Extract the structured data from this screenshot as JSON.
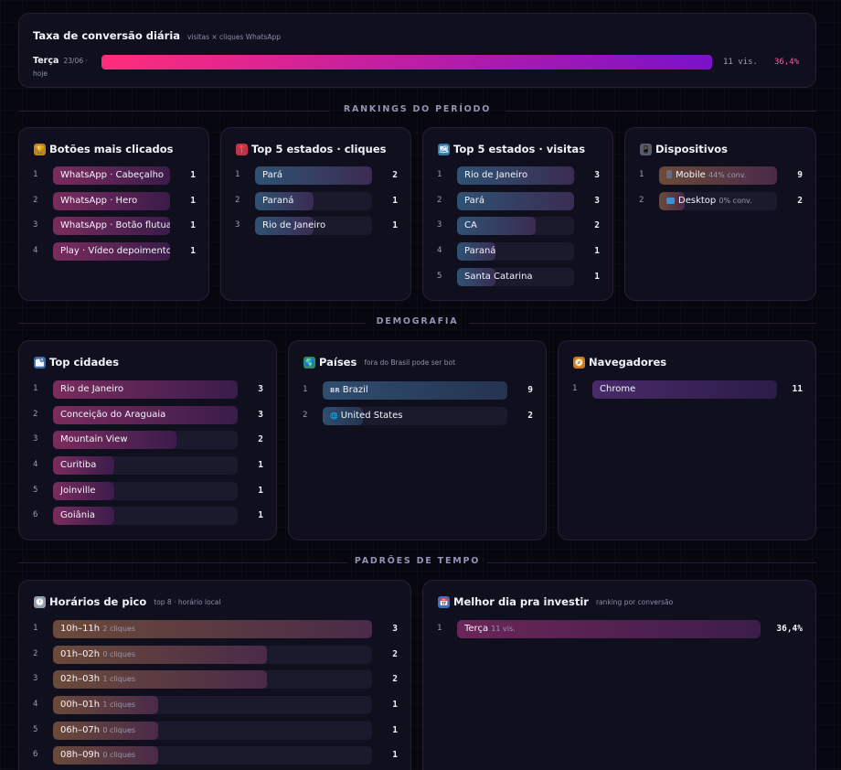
{
  "conversion": {
    "title": "Taxa de conversão diária",
    "subtitle": "visitas × cliques WhatsApp",
    "day": "Terça",
    "date": "23/06 · hoje",
    "visits": "11 vis.",
    "rate": "36,4%"
  },
  "sections": {
    "rankings": "RANKINGS DO PERÍODO",
    "demografia": "DEMOGRAFIA",
    "tempo": "PADRÕES DE TEMPO"
  },
  "top_buttons": {
    "title": "Botões mais clicados",
    "icon": "trophy-icon",
    "rows": [
      {
        "rank": "1",
        "label": "WhatsApp · Cabeçalho",
        "count": "1",
        "fill": 1.0
      },
      {
        "rank": "2",
        "label": "WhatsApp · Hero",
        "count": "1",
        "fill": 1.0
      },
      {
        "rank": "3",
        "label": "WhatsApp · Botão flutua…",
        "count": "1",
        "fill": 1.0
      },
      {
        "rank": "4",
        "label": "Play · Vídeo depoimento",
        "count": "1",
        "fill": 1.0
      }
    ]
  },
  "states_clicks": {
    "title": "Top 5 estados · cliques",
    "icon": "pin-icon",
    "rows": [
      {
        "rank": "1",
        "label": "Pará",
        "count": "2",
        "fill": 1.0
      },
      {
        "rank": "2",
        "label": "Paraná",
        "count": "1",
        "fill": 0.5
      },
      {
        "rank": "3",
        "label": "Rio de Janeiro",
        "count": "1",
        "fill": 0.5
      }
    ]
  },
  "states_visits": {
    "title": "Top 5 estados · visitas",
    "icon": "map-icon",
    "rows": [
      {
        "rank": "1",
        "label": "Rio de Janeiro",
        "count": "3",
        "fill": 1.0
      },
      {
        "rank": "2",
        "label": "Pará",
        "count": "3",
        "fill": 1.0
      },
      {
        "rank": "3",
        "label": "CA",
        "count": "2",
        "fill": 0.67
      },
      {
        "rank": "4",
        "label": "Paraná",
        "count": "1",
        "fill": 0.33
      },
      {
        "rank": "5",
        "label": "Santa Catarina",
        "count": "1",
        "fill": 0.33
      }
    ]
  },
  "devices": {
    "title": "Dispositivos",
    "icon": "phone-icon",
    "rows": [
      {
        "rank": "1",
        "label": "Mobile",
        "extra": "44% conv.",
        "count": "9",
        "fill": 1.0,
        "icon": "mobile-icon"
      },
      {
        "rank": "2",
        "label": "Desktop",
        "extra": "0% conv.",
        "count": "2",
        "fill": 0.22,
        "icon": "desktop-icon"
      }
    ]
  },
  "cities": {
    "title": "Top cidades",
    "icon": "city-icon",
    "rows": [
      {
        "rank": "1",
        "label": "Rio de Janeiro",
        "count": "3",
        "fill": 1.0
      },
      {
        "rank": "2",
        "label": "Conceição do Araguaia",
        "count": "3",
        "fill": 1.0
      },
      {
        "rank": "3",
        "label": "Mountain View",
        "count": "2",
        "fill": 0.67
      },
      {
        "rank": "4",
        "label": "Curitiba",
        "count": "1",
        "fill": 0.33
      },
      {
        "rank": "5",
        "label": "Joinville",
        "count": "1",
        "fill": 0.33
      },
      {
        "rank": "6",
        "label": "Goiânia",
        "count": "1",
        "fill": 0.33
      }
    ]
  },
  "countries": {
    "title": "Países",
    "subtitle": "fora do Brasil pode ser bot",
    "icon": "globe-icon",
    "rows": [
      {
        "rank": "1",
        "flag": "BR",
        "label": "Brazil",
        "count": "9",
        "fill": 1.0
      },
      {
        "rank": "2",
        "flag": "🌐",
        "label": "United States",
        "count": "2",
        "fill": 0.22
      }
    ]
  },
  "browsers": {
    "title": "Navegadores",
    "icon": "compass-icon",
    "rows": [
      {
        "rank": "1",
        "label": "Chrome",
        "count": "11",
        "fill": 1.0
      }
    ]
  },
  "peak_hours": {
    "title": "Horários de pico",
    "subtitle": "top 8 · horário local",
    "icon": "clock-icon",
    "rows": [
      {
        "rank": "1",
        "label": "10h–11h",
        "extra": "2 cliques",
        "count": "3",
        "fill": 1.0
      },
      {
        "rank": "2",
        "label": "01h–02h",
        "extra": "0 cliques",
        "count": "2",
        "fill": 0.67
      },
      {
        "rank": "3",
        "label": "02h–03h",
        "extra": "1 cliques",
        "count": "2",
        "fill": 0.67
      },
      {
        "rank": "4",
        "label": "00h–01h",
        "extra": "1 cliques",
        "count": "1",
        "fill": 0.33
      },
      {
        "rank": "5",
        "label": "06h–07h",
        "extra": "0 cliques",
        "count": "1",
        "fill": 0.33
      },
      {
        "rank": "6",
        "label": "08h–09h",
        "extra": "0 cliques",
        "count": "1",
        "fill": 0.33
      }
    ]
  },
  "best_day": {
    "title": "Melhor dia pra investir",
    "subtitle": "ranking por conversão",
    "icon": "calendar-icon",
    "rows": [
      {
        "rank": "1",
        "label": "Terça",
        "extra": "11 vis.",
        "count": "36,4%",
        "fill": 1.0
      }
    ]
  },
  "conversion_fill": 1.0
}
